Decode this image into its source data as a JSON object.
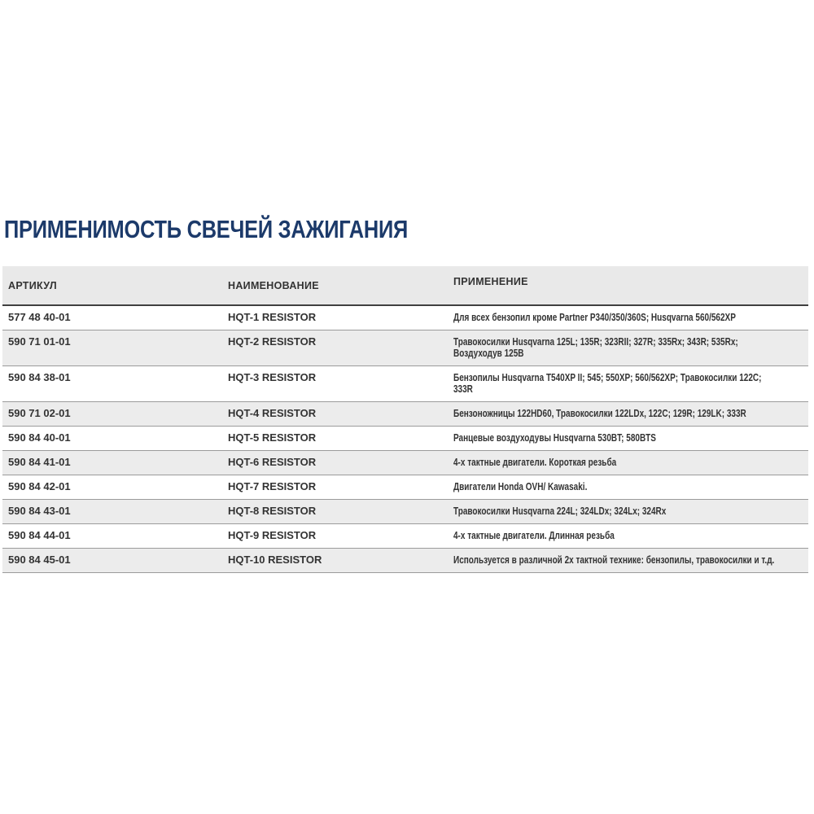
{
  "page": {
    "title": "ПРИМЕНИМОСТЬ СВЕЧЕЙ ЗАЖИГАНИЯ"
  },
  "colors": {
    "title_text": "#1c3a6a",
    "header_background": "#e9e9e9",
    "stripe_background": "#ececec",
    "body_text": "#333333",
    "header_underline": "#3f3f3f",
    "row_separator": "#9b9b9b"
  },
  "table": {
    "columns": {
      "article": "АРТИКУЛ",
      "name": "НАИМЕНОВАНИЕ",
      "application": "ПРИМЕНЕНИЕ"
    },
    "rows": [
      {
        "article": "577 48 40-01",
        "name": "HQT-1 RESISTOR",
        "application": "Для всех бензопил кроме Partner P340/350/360S; Husqvarna 560/562XP"
      },
      {
        "article": "590 71 01-01",
        "name": "HQT-2 RESISTOR",
        "application": "Травокосилки Husqvarna 125L; 135R; 323RII; 327R; 335Rx; 343R; 535Rx;\nВоздуходув 125B"
      },
      {
        "article": "590 84 38-01",
        "name": "HQT-3 RESISTOR",
        "application": "Бензопилы Husqvarna T540XP II; 545; 550XP; 560/562XP; Травокосилки 122C;\n333R"
      },
      {
        "article": "590 71 02-01",
        "name": "HQT-4 RESISTOR",
        "application": "Бензоножницы 122HD60, Травокосилки 122LDx, 122C; 129R; 129LK; 333R"
      },
      {
        "article": "590 84 40-01",
        "name": "HQT-5 RESISTOR",
        "application": "Ранцевые воздуходувы Husqvarna 530BT; 580BTS"
      },
      {
        "article": "590 84 41-01",
        "name": "HQT-6 RESISTOR",
        "application": "4-х тактные двигатели. Короткая резьба"
      },
      {
        "article": "590 84 42-01",
        "name": "HQT-7 RESISTOR",
        "application": "Двигатели Honda OVH/ Kawasaki."
      },
      {
        "article": "590 84 43-01",
        "name": "HQT-8 RESISTOR",
        "application": "Травокосилки Husqvarna 224L; 324LDx; 324Lx; 324Rx"
      },
      {
        "article": "590 84 44-01",
        "name": "HQT-9 RESISTOR",
        "application": "4-х тактные двигатели. Длинная резьба"
      },
      {
        "article": "590 84 45-01",
        "name": "HQT-10 RESISTOR",
        "application": "Используется в различной 2х тактной технике: бензопилы, травокосилки и т.д."
      }
    ]
  }
}
